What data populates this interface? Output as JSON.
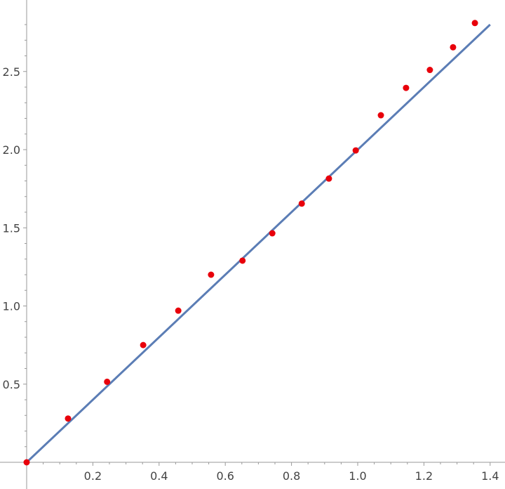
{
  "chart_data": {
    "type": "scatter",
    "title": "",
    "xlabel": "",
    "ylabel": "",
    "xlim": [
      0,
      1.4
    ],
    "ylim": [
      0,
      2.8
    ],
    "x_ticks": [
      0.2,
      0.4,
      0.6,
      0.8,
      1.0,
      1.2,
      1.4
    ],
    "x_tick_labels": [
      "0.2",
      "0.4",
      "0.6",
      "0.8",
      "1.0",
      "1.2",
      "1.4"
    ],
    "y_ticks": [
      0.5,
      1.0,
      1.5,
      2.0,
      2.5
    ],
    "y_tick_labels": [
      "0.5",
      "1.0",
      "1.5",
      "2.0",
      "2.5"
    ],
    "grid": false,
    "series": [
      {
        "type": "scatter",
        "color": "#e8000b",
        "points": [
          [
            0.0,
            0.0
          ],
          [
            0.125,
            0.28
          ],
          [
            0.243,
            0.515
          ],
          [
            0.352,
            0.75
          ],
          [
            0.458,
            0.97
          ],
          [
            0.557,
            1.2
          ],
          [
            0.652,
            1.29
          ],
          [
            0.742,
            1.465
          ],
          [
            0.831,
            1.655
          ],
          [
            0.913,
            1.815
          ],
          [
            0.994,
            1.995
          ],
          [
            1.07,
            2.22
          ],
          [
            1.146,
            2.395
          ],
          [
            1.218,
            2.51
          ],
          [
            1.288,
            2.655
          ],
          [
            1.354,
            2.81
          ]
        ]
      },
      {
        "type": "line",
        "color": "#5b7db5",
        "points": [
          [
            0.0,
            0.0
          ],
          [
            1.4,
            2.8
          ]
        ]
      }
    ]
  }
}
